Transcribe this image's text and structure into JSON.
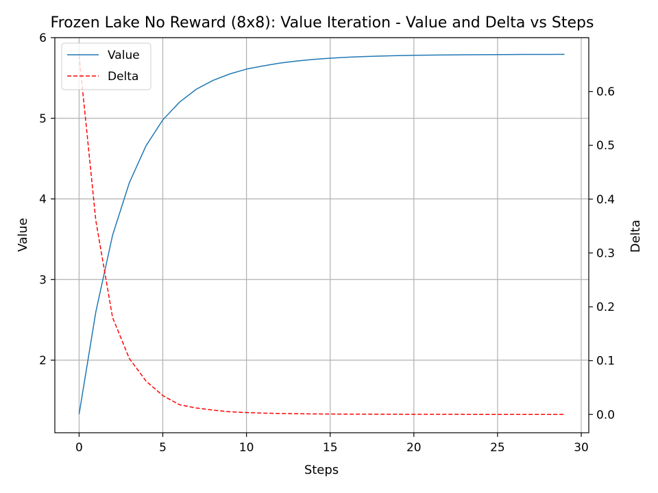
{
  "chart_data": {
    "type": "line",
    "title": "Frozen Lake No Reward (8x8): Value Iteration - Value and Delta vs Steps",
    "xlabel": "Steps",
    "ylabel": "Value",
    "y2label": "Delta",
    "xlim": [
      -1.45,
      30.45
    ],
    "ylim": [
      1.1,
      6.0
    ],
    "y2lim": [
      -0.034,
      0.7
    ],
    "xticks": [
      0,
      5,
      10,
      15,
      20,
      25,
      30
    ],
    "yticks": [
      2,
      3,
      4,
      5,
      6
    ],
    "y2ticks": [
      0.0,
      0.1,
      0.2,
      0.3,
      0.4,
      0.5,
      0.6
    ],
    "grid": true,
    "legend_position": "top-left",
    "x": [
      0,
      1,
      2,
      3,
      4,
      5,
      6,
      7,
      8,
      9,
      10,
      11,
      12,
      13,
      14,
      15,
      16,
      17,
      18,
      19,
      20,
      21,
      22,
      23,
      24,
      25,
      26,
      27,
      28,
      29
    ],
    "series": [
      {
        "name": "Value",
        "axis": "left",
        "color": "#1f77b4",
        "style": "solid",
        "values": [
          1.33,
          2.6,
          3.55,
          4.2,
          4.66,
          4.98,
          5.2,
          5.36,
          5.47,
          5.55,
          5.61,
          5.65,
          5.685,
          5.71,
          5.73,
          5.745,
          5.757,
          5.765,
          5.772,
          5.777,
          5.781,
          5.784,
          5.786,
          5.788,
          5.789,
          5.79,
          5.791,
          5.792,
          5.792,
          5.793
        ]
      },
      {
        "name": "Delta",
        "axis": "right",
        "color": "#ff0000",
        "style": "dashed",
        "values": [
          0.667,
          0.36,
          0.18,
          0.104,
          0.062,
          0.035,
          0.018,
          0.012,
          0.008,
          0.005,
          0.0035,
          0.0025,
          0.0018,
          0.0013,
          0.001,
          0.0008,
          0.0006,
          0.0005,
          0.0004,
          0.0003,
          0.0002,
          0.0002,
          0.00015,
          0.0001,
          0.0001,
          0.0001,
          0.0001,
          0.0001,
          0.0001,
          0.0001
        ]
      }
    ]
  }
}
